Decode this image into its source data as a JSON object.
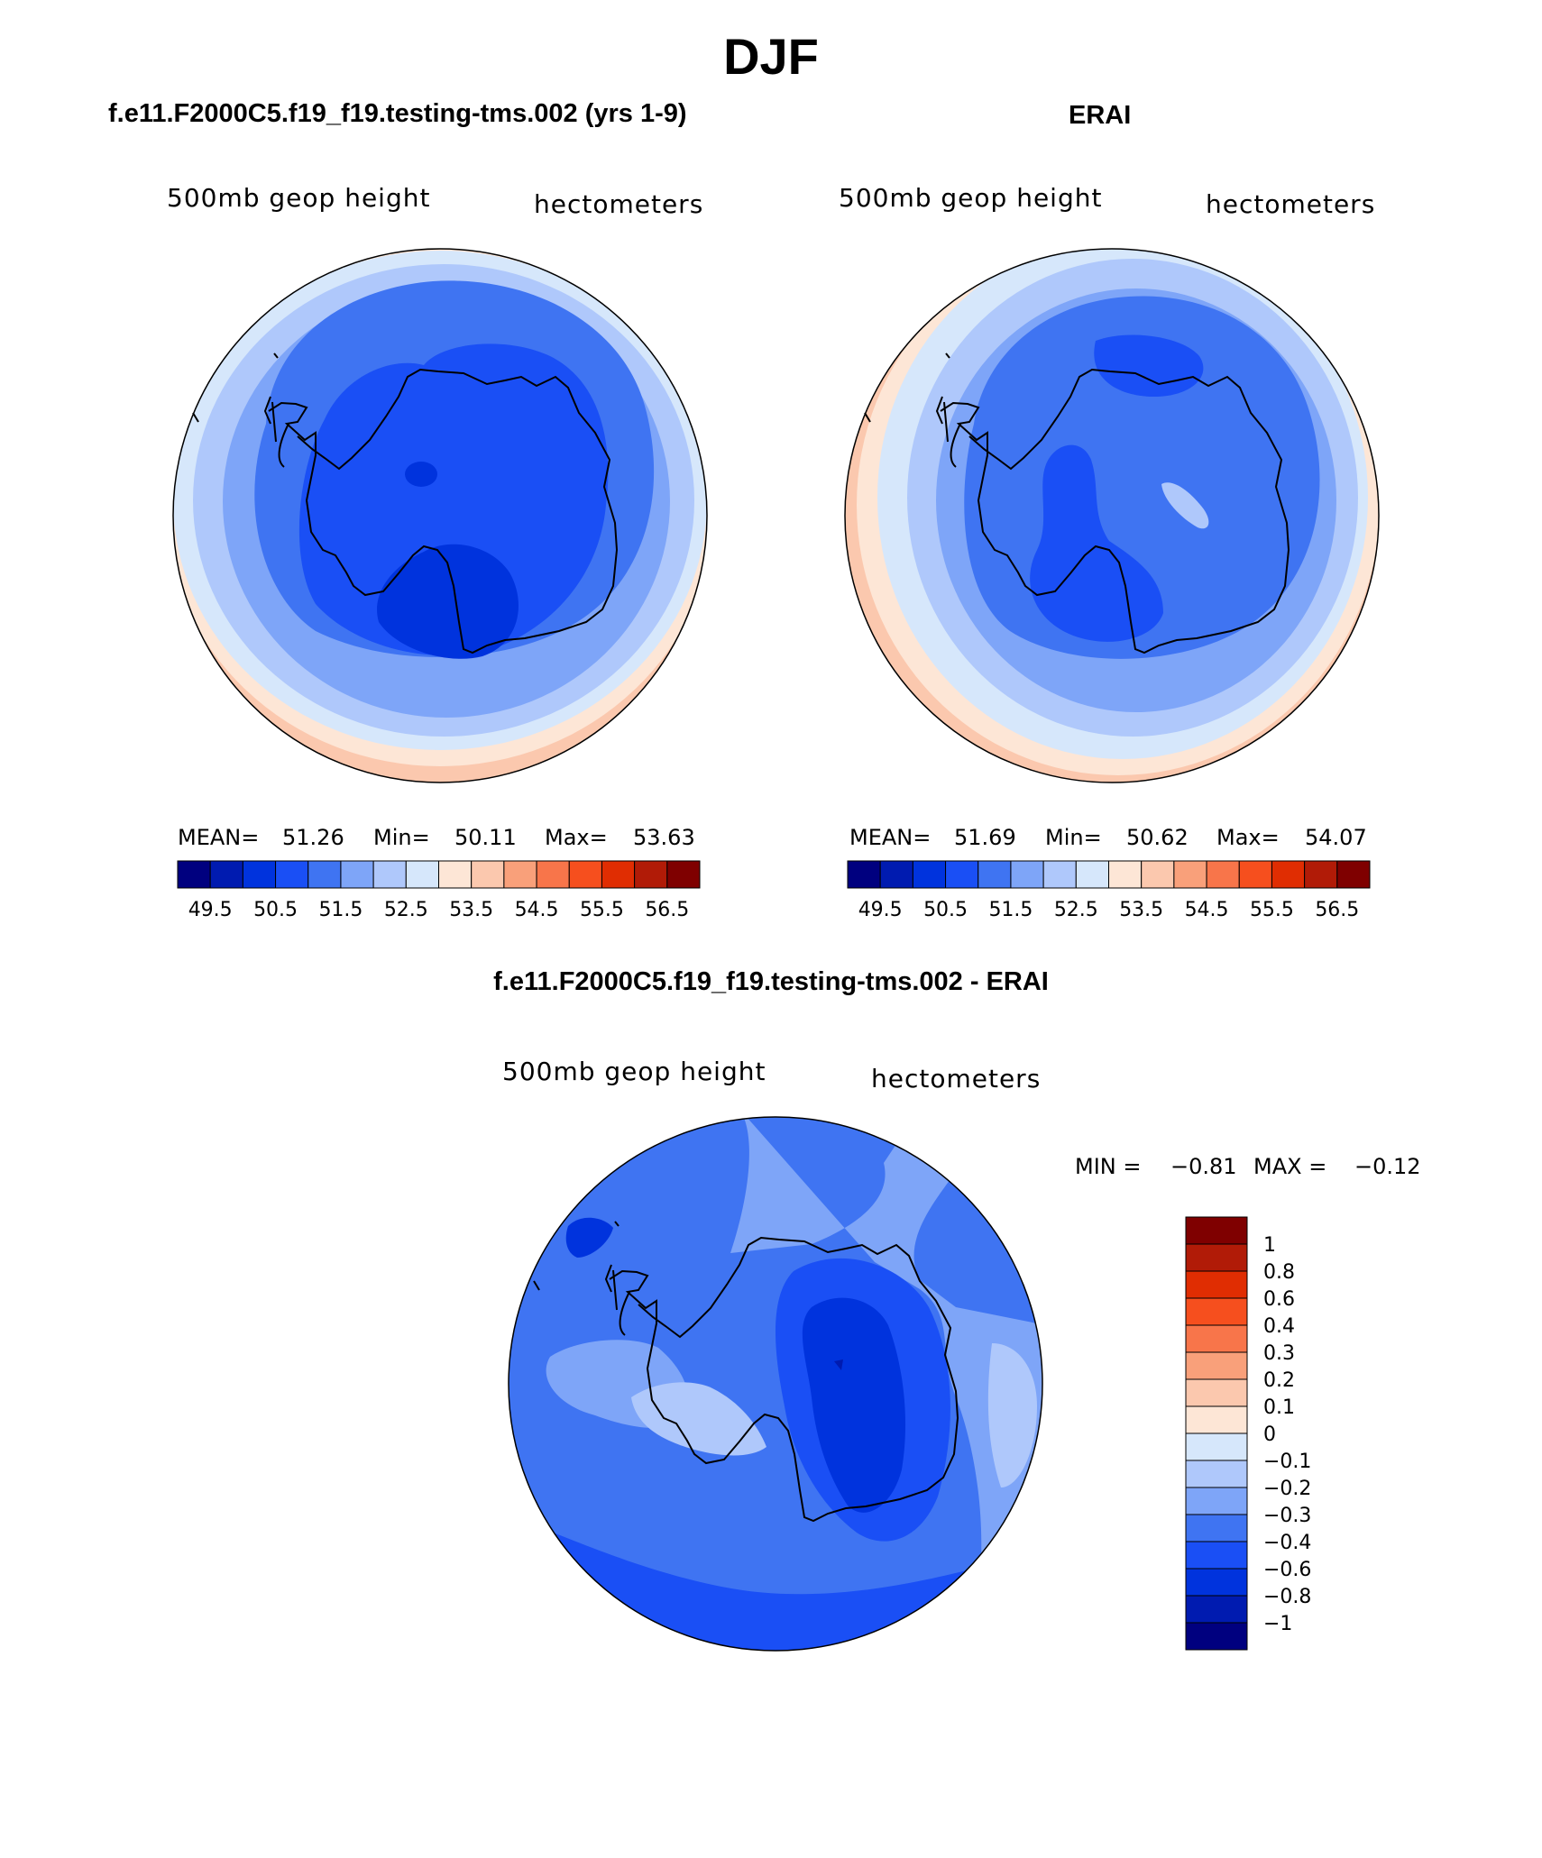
{
  "title": "DJF",
  "panels": [
    {
      "title": "f.e11.F2000C5.f19_f19.testing-tms.002 (yrs 1-9)",
      "variable": "500mb geop height",
      "units": "hectometers",
      "stats": {
        "mean_label": "MEAN=",
        "mean": "51.26",
        "min_label": "Min=",
        "min": "50.11",
        "max_label": "Max=",
        "max": "53.63"
      }
    },
    {
      "title": "ERAI",
      "variable": "500mb geop height",
      "units": "hectometers",
      "stats": {
        "mean_label": "MEAN=",
        "mean": "51.69",
        "min_label": "Min=",
        "min": "50.62",
        "max_label": "Max=",
        "max": "54.07"
      }
    }
  ],
  "colorbar": {
    "colors": [
      "#00007f",
      "#001bb0",
      "#0033dd",
      "#1a4ff5",
      "#3f74f2",
      "#7ea5f8",
      "#afc8fb",
      "#d6e7fb",
      "#fde6d6",
      "#fbc8ae",
      "#f9a07a",
      "#f8754a",
      "#f64f1e",
      "#e02d02",
      "#b11b07",
      "#7f0000"
    ],
    "labels": [
      "49.5",
      "50.5",
      "51.5",
      "52.5",
      "53.5",
      "54.5",
      "55.5",
      "56.5"
    ]
  },
  "difference": {
    "title": "f.e11.F2000C5.f19_f19.testing-tms.002 - ERAI",
    "variable": "500mb geop height",
    "units": "hectometers",
    "min_label": "MIN =",
    "min": "−0.81",
    "max_label": "MAX =",
    "max": "−0.12",
    "colors": [
      "#7f0000",
      "#b11b07",
      "#e02d02",
      "#f64f1e",
      "#f8754a",
      "#f9a07a",
      "#fbc8ae",
      "#fde6d6",
      "#d6e7fb",
      "#afc8fb",
      "#7ea5f8",
      "#3f74f2",
      "#1a4ff5",
      "#0033dd",
      "#001bb0",
      "#00007f"
    ],
    "labels": [
      "1",
      "0.8",
      "0.6",
      "0.4",
      "0.3",
      "0.2",
      "0.1",
      "0",
      "−0.1",
      "−0.2",
      "−0.3",
      "−0.4",
      "−0.6",
      "−0.8",
      "−1"
    ]
  }
}
